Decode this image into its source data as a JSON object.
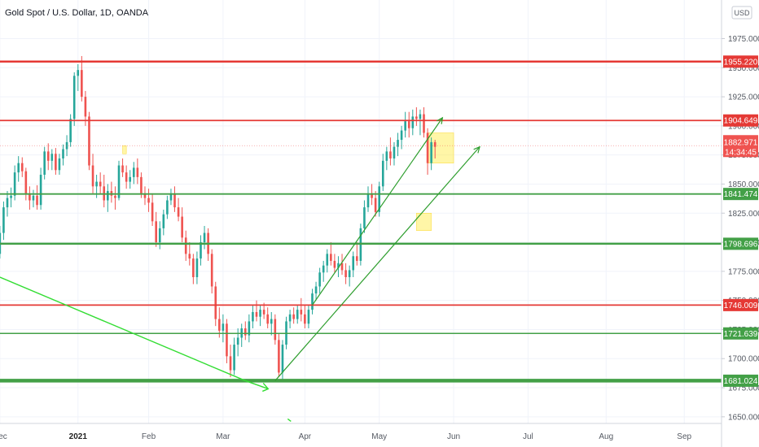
{
  "chart_data": {
    "type": "candlestick",
    "title": "Gold Spot / U.S. Dollar, 1D, OANDA",
    "currency": "USD",
    "ylim": [
      1645,
      1990
    ],
    "y_ticks": [
      "1975.000",
      "1950.000",
      "1925.000",
      "1900.000",
      "1875.000",
      "1850.000",
      "1825.000",
      "1800.000",
      "1775.000",
      "1750.000",
      "1725.000",
      "1700.000",
      "1675.000",
      "1650.000"
    ],
    "x_ticks": [
      {
        "label": "Dec",
        "day": -2,
        "bold": false
      },
      {
        "label": "2021",
        "day": 19,
        "bold": true
      },
      {
        "label": "Feb",
        "day": 38,
        "bold": false
      },
      {
        "label": "Mar",
        "day": 58,
        "bold": false
      },
      {
        "label": "Apr",
        "day": 80,
        "bold": false
      },
      {
        "label": "May",
        "day": 100,
        "bold": false
      },
      {
        "label": "Jun",
        "day": 120,
        "bold": false
      },
      {
        "label": "Jul",
        "day": 140,
        "bold": false
      },
      {
        "label": "Aug",
        "day": 161,
        "bold": false
      },
      {
        "label": "Sep",
        "day": 182,
        "bold": false
      }
    ],
    "levels": [
      {
        "price": 1955.22,
        "label": "1955.220",
        "color": "#e53935",
        "width": 2.5
      },
      {
        "price": 1904.649,
        "label": "1904.649",
        "color": "#e53935",
        "width": 1.8
      },
      {
        "price": 1841.474,
        "label": "1841.474",
        "color": "#43a047",
        "width": 1.8
      },
      {
        "price": 1798.696,
        "label": "1798.696",
        "color": "#43a047",
        "width": 2.5
      },
      {
        "price": 1746.009,
        "label": "1746.009",
        "color": "#e53935",
        "width": 1.8
      },
      {
        "price": 1721.639,
        "label": "1721.639",
        "color": "#43a047",
        "width": 1.5
      },
      {
        "price": 1681.024,
        "label": "1681.024",
        "color": "#43a047",
        "width": 4.5
      }
    ],
    "current_price": {
      "label": "1882.971",
      "countdown": "14:34:45",
      "price": 1882.971,
      "color": "#ef5350"
    },
    "candles": [
      [
        -3,
        1781,
        1800,
        1771,
        1790
      ],
      [
        -2,
        1790,
        1814,
        1786,
        1808
      ],
      [
        -1,
        1808,
        1835,
        1802,
        1830
      ],
      [
        0,
        1830,
        1844,
        1822,
        1838
      ],
      [
        1,
        1838,
        1847,
        1830,
        1840
      ],
      [
        2,
        1840,
        1866,
        1836,
        1860
      ],
      [
        3,
        1860,
        1874,
        1852,
        1868
      ],
      [
        4,
        1868,
        1873,
        1856,
        1861
      ],
      [
        5,
        1861,
        1864,
        1836,
        1842
      ],
      [
        6,
        1842,
        1848,
        1828,
        1836
      ],
      [
        7,
        1836,
        1845,
        1830,
        1840
      ],
      [
        8,
        1840,
        1849,
        1828,
        1832
      ],
      [
        9,
        1832,
        1864,
        1828,
        1858
      ],
      [
        10,
        1858,
        1882,
        1854,
        1878
      ],
      [
        11,
        1878,
        1885,
        1862,
        1870
      ],
      [
        12,
        1870,
        1880,
        1862,
        1876
      ],
      [
        13,
        1876,
        1881,
        1858,
        1862
      ],
      [
        14,
        1862,
        1876,
        1858,
        1872
      ],
      [
        15,
        1872,
        1884,
        1866,
        1880
      ],
      [
        16,
        1880,
        1892,
        1874,
        1886
      ],
      [
        17,
        1886,
        1910,
        1882,
        1906
      ],
      [
        18,
        1906,
        1946,
        1900,
        1943
      ],
      [
        19,
        1943,
        1953,
        1930,
        1948
      ],
      [
        20,
        1948,
        1960,
        1921,
        1925
      ],
      [
        21,
        1925,
        1930,
        1900,
        1908
      ],
      [
        22,
        1908,
        1912,
        1862,
        1866
      ],
      [
        23,
        1866,
        1876,
        1842,
        1848
      ],
      [
        24,
        1848,
        1858,
        1838,
        1852
      ],
      [
        25,
        1852,
        1860,
        1842,
        1848
      ],
      [
        26,
        1848,
        1858,
        1830,
        1836
      ],
      [
        27,
        1836,
        1850,
        1826,
        1844
      ],
      [
        28,
        1844,
        1852,
        1834,
        1840
      ],
      [
        29,
        1840,
        1848,
        1828,
        1838
      ],
      [
        30,
        1838,
        1870,
        1836,
        1866
      ],
      [
        31,
        1866,
        1872,
        1856,
        1860
      ],
      [
        32,
        1860,
        1866,
        1846,
        1852
      ],
      [
        33,
        1852,
        1862,
        1846,
        1856
      ],
      [
        34,
        1856,
        1869,
        1850,
        1864
      ],
      [
        35,
        1864,
        1872,
        1850,
        1856
      ],
      [
        36,
        1856,
        1860,
        1838,
        1842
      ],
      [
        37,
        1842,
        1848,
        1832,
        1838
      ],
      [
        38,
        1838,
        1846,
        1826,
        1834
      ],
      [
        39,
        1834,
        1842,
        1814,
        1818
      ],
      [
        40,
        1818,
        1826,
        1796,
        1800
      ],
      [
        41,
        1800,
        1818,
        1794,
        1812
      ],
      [
        42,
        1812,
        1828,
        1806,
        1824
      ],
      [
        43,
        1824,
        1840,
        1820,
        1836
      ],
      [
        44,
        1836,
        1846,
        1832,
        1842
      ],
      [
        45,
        1842,
        1848,
        1826,
        1830
      ],
      [
        46,
        1830,
        1838,
        1818,
        1822
      ],
      [
        47,
        1822,
        1830,
        1800,
        1804
      ],
      [
        48,
        1804,
        1810,
        1784,
        1790
      ],
      [
        49,
        1790,
        1800,
        1780,
        1786
      ],
      [
        50,
        1786,
        1790,
        1764,
        1770
      ],
      [
        51,
        1770,
        1792,
        1764,
        1786
      ],
      [
        52,
        1786,
        1806,
        1780,
        1800
      ],
      [
        53,
        1800,
        1814,
        1794,
        1808
      ],
      [
        54,
        1808,
        1812,
        1784,
        1790
      ],
      [
        55,
        1790,
        1794,
        1756,
        1762
      ],
      [
        56,
        1762,
        1766,
        1728,
        1734
      ],
      [
        57,
        1734,
        1744,
        1718,
        1724
      ],
      [
        58,
        1724,
        1738,
        1714,
        1730
      ],
      [
        59,
        1730,
        1734,
        1696,
        1702
      ],
      [
        60,
        1702,
        1712,
        1684,
        1690
      ],
      [
        61,
        1690,
        1718,
        1686,
        1712
      ],
      [
        62,
        1712,
        1726,
        1702,
        1718
      ],
      [
        63,
        1718,
        1730,
        1710,
        1726
      ],
      [
        64,
        1726,
        1732,
        1716,
        1720
      ],
      [
        65,
        1720,
        1738,
        1714,
        1732
      ],
      [
        66,
        1732,
        1746,
        1726,
        1740
      ],
      [
        67,
        1740,
        1750,
        1732,
        1736
      ],
      [
        68,
        1736,
        1746,
        1728,
        1742
      ],
      [
        69,
        1742,
        1748,
        1734,
        1738
      ],
      [
        70,
        1738,
        1744,
        1726,
        1730
      ],
      [
        71,
        1730,
        1740,
        1720,
        1734
      ],
      [
        72,
        1734,
        1738,
        1712,
        1716
      ],
      [
        73,
        1716,
        1722,
        1684,
        1688
      ],
      [
        74,
        1688,
        1716,
        1682,
        1712
      ],
      [
        75,
        1712,
        1736,
        1708,
        1732
      ],
      [
        76,
        1732,
        1742,
        1726,
        1738
      ],
      [
        77,
        1738,
        1744,
        1730,
        1734
      ],
      [
        78,
        1734,
        1746,
        1730,
        1742
      ],
      [
        79,
        1742,
        1752,
        1732,
        1738
      ],
      [
        80,
        1738,
        1746,
        1726,
        1730
      ],
      [
        81,
        1730,
        1746,
        1726,
        1742
      ],
      [
        82,
        1742,
        1760,
        1738,
        1756
      ],
      [
        83,
        1756,
        1766,
        1750,
        1762
      ],
      [
        84,
        1762,
        1778,
        1756,
        1774
      ],
      [
        85,
        1774,
        1784,
        1766,
        1780
      ],
      [
        86,
        1780,
        1794,
        1774,
        1790
      ],
      [
        87,
        1790,
        1800,
        1780,
        1784
      ],
      [
        88,
        1784,
        1790,
        1774,
        1778
      ],
      [
        89,
        1778,
        1788,
        1770,
        1782
      ],
      [
        90,
        1782,
        1790,
        1772,
        1776
      ],
      [
        91,
        1776,
        1782,
        1764,
        1770
      ],
      [
        92,
        1770,
        1780,
        1762,
        1776
      ],
      [
        93,
        1776,
        1792,
        1770,
        1788
      ],
      [
        94,
        1788,
        1800,
        1780,
        1784
      ],
      [
        95,
        1784,
        1816,
        1780,
        1812
      ],
      [
        96,
        1812,
        1836,
        1808,
        1830
      ],
      [
        97,
        1830,
        1848,
        1826,
        1842
      ],
      [
        98,
        1842,
        1850,
        1832,
        1838
      ],
      [
        99,
        1838,
        1844,
        1822,
        1826
      ],
      [
        100,
        1826,
        1852,
        1822,
        1848
      ],
      [
        101,
        1848,
        1876,
        1844,
        1870
      ],
      [
        102,
        1870,
        1882,
        1862,
        1878
      ],
      [
        103,
        1878,
        1890,
        1866,
        1872
      ],
      [
        104,
        1872,
        1886,
        1866,
        1882
      ],
      [
        105,
        1882,
        1894,
        1874,
        1888
      ],
      [
        106,
        1888,
        1900,
        1880,
        1896
      ],
      [
        107,
        1896,
        1912,
        1890,
        1904
      ],
      [
        108,
        1904,
        1912,
        1890,
        1898
      ],
      [
        109,
        1898,
        1914,
        1892,
        1908
      ],
      [
        110,
        1908,
        1916,
        1900,
        1906
      ],
      [
        111,
        1906,
        1914,
        1892,
        1910
      ],
      [
        112,
        1910,
        1916,
        1890,
        1894
      ],
      [
        113,
        1894,
        1898,
        1858,
        1868
      ],
      [
        114,
        1868,
        1890,
        1862,
        1886
      ],
      [
        115,
        1886,
        1888,
        1872,
        1882
      ]
    ],
    "drawings": {
      "channel_lower": [
        [
          72,
          1681
        ],
        [
          127,
          1882
        ]
      ],
      "channel_upper": [
        [
          82,
          1746
        ],
        [
          117,
          1907
        ]
      ],
      "down_trend": [
        [
          -2,
          1770
        ],
        [
          64,
          1681
        ]
      ],
      "highlights": [
        [
          113,
          1894,
          120,
          1868
        ],
        [
          110,
          1825,
          114,
          1810
        ],
        [
          31,
          1883,
          32,
          1876
        ]
      ]
    }
  }
}
